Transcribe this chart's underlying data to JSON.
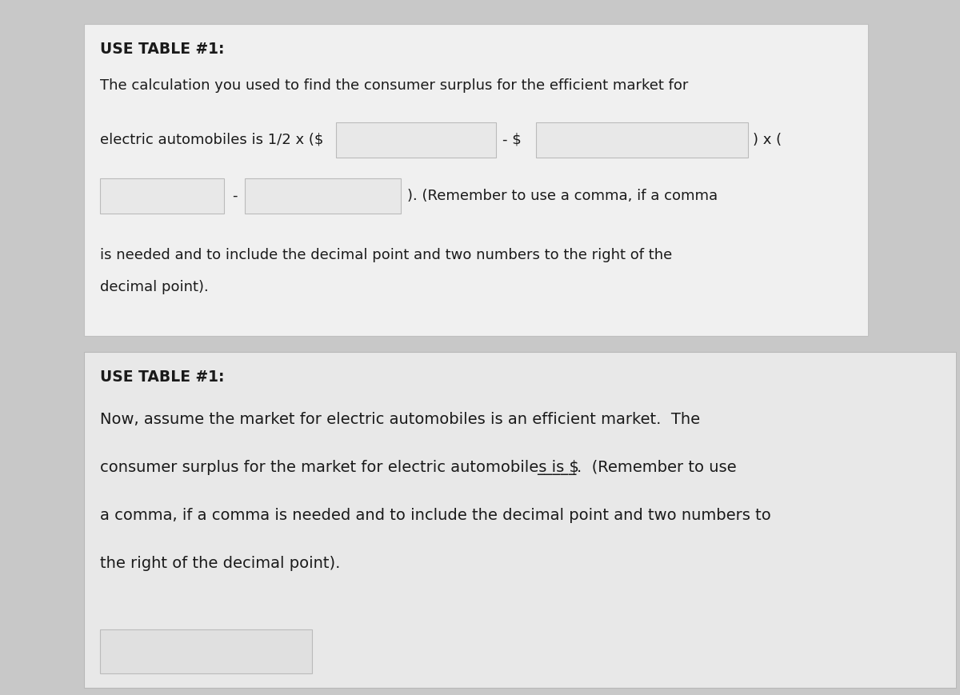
{
  "overall_bg": "#c8c8c8",
  "panel1_bg": "#f0f0f0",
  "panel2_bg": "#e8e8e8",
  "box_fill": "#e8e8e8",
  "box_edge": "#bbbbbb",
  "text_color": "#1a1a1a",
  "bold_title": "USE TABLE #1:",
  "panel1_line1": "The calculation you used to find the consumer surplus for the efficient market for",
  "panel1_line2_pre": "electric automobiles is 1/2 x ($",
  "panel1_line2_mid": "- $",
  "panel1_line2_post": ") x (",
  "panel1_line3_dash": "-",
  "panel1_line3_post": "). (Remember to use a comma, if a comma",
  "panel1_line4": "is needed and to include the decimal point and two numbers to the right of the",
  "panel1_line5": "decimal point).",
  "panel2_title": "USE TABLE #1:",
  "panel2_line1": "Now, assume the market for electric automobiles is an efficient market.  The",
  "panel2_line2a": "consumer surplus for the market for electric automobiles is $",
  "panel2_line2b": "_____",
  "panel2_line2c": ".  (Remember to use",
  "panel2_line3": "a comma, if a comma is needed and to include the decimal point and two numbers to",
  "panel2_line4": "the right of the decimal point).",
  "figw": 12.0,
  "figh": 8.69,
  "dpi": 100
}
